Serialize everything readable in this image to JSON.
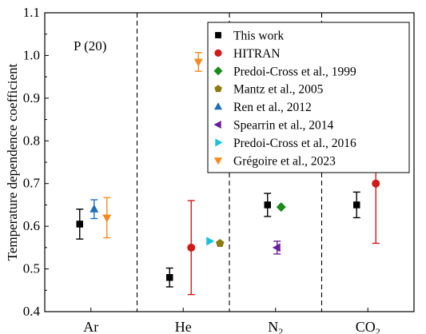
{
  "chart_data": {
    "type": "scatter",
    "ylabel": "Temperature dependence coefficient",
    "ylim": [
      0.4,
      1.1
    ],
    "yticks": [
      "0.4",
      "0.5",
      "0.6",
      "0.7",
      "0.8",
      "0.9",
      "1.0",
      "1.1"
    ],
    "categories": [
      {
        "label": "Ar",
        "sub": ""
      },
      {
        "label": "He",
        "sub": ""
      },
      {
        "label": "N",
        "sub": "2"
      },
      {
        "label": "CO",
        "sub": "2"
      }
    ],
    "annotation": "P (20)",
    "legend_position": "top-right",
    "series": [
      {
        "name": "This work",
        "color": "#000000",
        "marker": "square",
        "points": [
          {
            "category": "Ar",
            "y": 0.605,
            "err": 0.035
          },
          {
            "category": "He",
            "y": 0.48,
            "err": 0.022
          },
          {
            "category": "N2",
            "y": 0.65,
            "err": 0.027
          },
          {
            "category": "CO2",
            "y": 0.65,
            "err": 0.03
          }
        ]
      },
      {
        "name": "HITRAN",
        "color": "#d11a1a",
        "marker": "circle",
        "points": [
          {
            "category": "He",
            "y": 0.55,
            "err": 0.11
          },
          {
            "category": "CO2",
            "y": 0.7,
            "err": 0.14
          }
        ]
      },
      {
        "name": "Predoi-Cross et al., 1999",
        "color": "#1a8a1a",
        "marker": "diamond",
        "points": [
          {
            "category": "N2",
            "y": 0.645
          }
        ]
      },
      {
        "name": "Mantz et al., 2005",
        "color": "#8c7a14",
        "marker": "pentagon",
        "points": [
          {
            "category": "He",
            "y": 0.56
          }
        ]
      },
      {
        "name": "Ren et al., 2012",
        "color": "#1f6fb5",
        "marker": "triangle-up",
        "points": [
          {
            "category": "Ar",
            "y": 0.64,
            "err": 0.022
          }
        ]
      },
      {
        "name": "Spearrin et al., 2014",
        "color": "#6a1f9a",
        "marker": "triangle-left",
        "points": [
          {
            "category": "N2",
            "y": 0.55,
            "err": 0.015
          }
        ]
      },
      {
        "name": "Predoi-Cross et al., 2016",
        "color": "#19c3d6",
        "marker": "triangle-right",
        "points": [
          {
            "category": "He",
            "y": 0.565
          }
        ]
      },
      {
        "name": "Grégoire et al., 2023",
        "color": "#f58a1f",
        "marker": "triangle-down",
        "points": [
          {
            "category": "Ar",
            "y": 0.62,
            "err": 0.047
          },
          {
            "category": "He",
            "y": 0.985,
            "err": 0.022
          }
        ]
      }
    ]
  }
}
